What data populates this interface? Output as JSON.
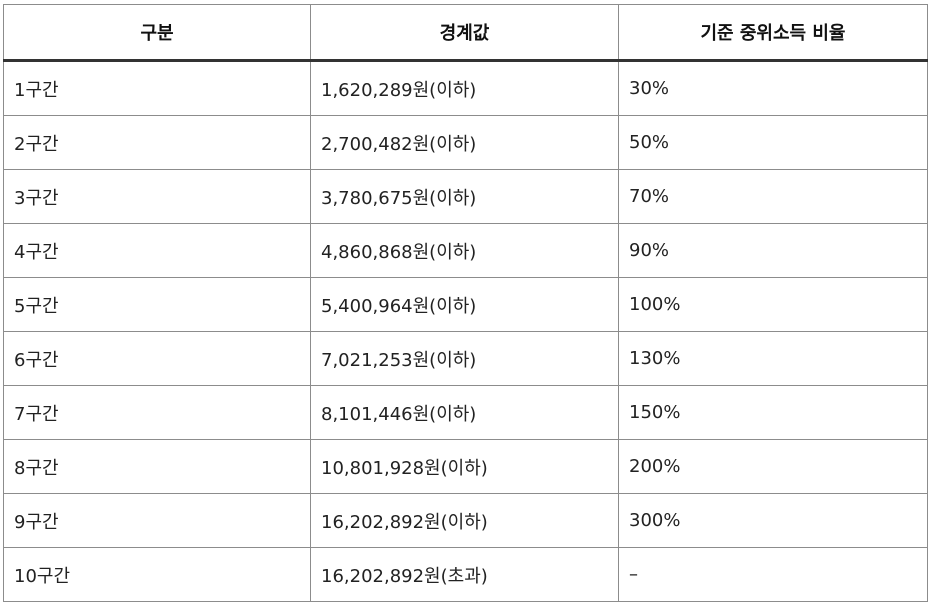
{
  "table": {
    "headers": [
      "구분",
      "경계값",
      "기준 중위소득 비율"
    ],
    "rows": [
      [
        "1구간",
        "1,620,289원(이하)",
        "30%"
      ],
      [
        "2구간",
        "2,700,482원(이하)",
        "50%"
      ],
      [
        "3구간",
        "3,780,675원(이하)",
        "70%"
      ],
      [
        "4구간",
        "4,860,868원(이하)",
        "90%"
      ],
      [
        "5구간",
        "5,400,964원(이하)",
        "100%"
      ],
      [
        "6구간",
        "7,021,253원(이하)",
        "130%"
      ],
      [
        "7구간",
        "8,101,446원(이하)",
        "150%"
      ],
      [
        "8구간",
        "10,801,928원(이하)",
        "200%"
      ],
      [
        "9구간",
        "16,202,892원(이하)",
        "300%"
      ],
      [
        "10구간",
        "16,202,892원(초과)",
        "–"
      ]
    ]
  },
  "colors": {
    "border": "#8c8c8c",
    "header_rule": "#333333",
    "text": "#222222"
  }
}
